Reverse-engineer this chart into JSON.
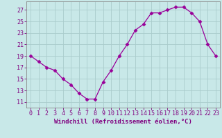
{
  "x": [
    0,
    1,
    2,
    3,
    4,
    5,
    6,
    7,
    8,
    9,
    10,
    11,
    12,
    13,
    14,
    15,
    16,
    17,
    18,
    19,
    20,
    21,
    22,
    23
  ],
  "y": [
    19,
    18,
    17,
    16.5,
    15,
    14,
    12.5,
    11.5,
    11.5,
    14.5,
    16.5,
    19,
    21,
    23.5,
    24.5,
    26.5,
    26.5,
    27,
    27.5,
    27.5,
    26.5,
    25,
    21,
    19
  ],
  "xlabel": "Windchill (Refroidissement éolien,°C)",
  "ylabel": "",
  "yticks": [
    11,
    13,
    15,
    17,
    19,
    21,
    23,
    25,
    27
  ],
  "xticks": [
    0,
    1,
    2,
    3,
    4,
    5,
    6,
    7,
    8,
    9,
    10,
    11,
    12,
    13,
    14,
    15,
    16,
    17,
    18,
    19,
    20,
    21,
    22,
    23
  ],
  "ylim": [
    10.0,
    28.5
  ],
  "xlim": [
    -0.5,
    23.5
  ],
  "line_color": "#990099",
  "marker": "D",
  "marker_size": 2.5,
  "bg_color": "#c8e8e8",
  "grid_color": "#aacccc",
  "label_color": "#800080",
  "tick_label_color": "#800080",
  "xlabel_fontsize": 6.5,
  "tick_fontsize": 6.0
}
